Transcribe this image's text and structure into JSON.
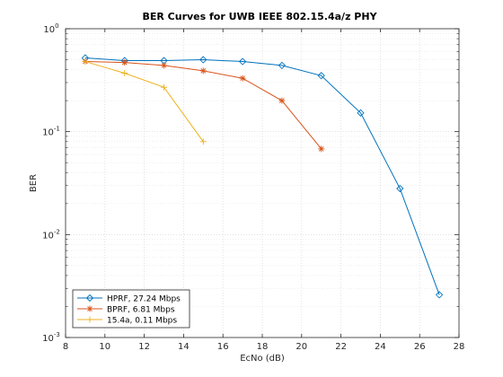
{
  "chart_data": {
    "type": "line",
    "title": "BER Curves for UWB IEEE 802.15.4a/z PHY",
    "xlabel": "EcNo (dB)",
    "ylabel": "BER",
    "xlim": [
      8,
      28
    ],
    "ylim": [
      0.001,
      1
    ],
    "yscale": "log",
    "xticks": [
      "8",
      "10",
      "12",
      "14",
      "16",
      "18",
      "20",
      "22",
      "24",
      "26",
      "28"
    ],
    "yticks": [
      {
        "base": "10",
        "exp": "0"
      },
      {
        "base": "10",
        "exp": "-1"
      },
      {
        "base": "10",
        "exp": "-2"
      },
      {
        "base": "10",
        "exp": "-3"
      }
    ],
    "grid": "on (major and minor, dotted)",
    "legend_location": "bottom-left",
    "series": [
      {
        "name": "HPRF, 27.24 Mbps",
        "color": "#0072BD",
        "marker": "diamond",
        "x": [
          9,
          11,
          13,
          15,
          17,
          19,
          21,
          23,
          25,
          27
        ],
        "y": [
          0.52,
          0.49,
          0.49,
          0.5,
          0.48,
          0.44,
          0.35,
          0.152,
          0.028,
          0.0026
        ]
      },
      {
        "name": "BPRF, 6.81 Mbps",
        "color": "#D95319",
        "marker": "asterisk",
        "x": [
          9,
          11,
          13,
          15,
          17,
          19,
          21
        ],
        "y": [
          0.48,
          0.47,
          0.44,
          0.39,
          0.33,
          0.2,
          0.068
        ]
      },
      {
        "name": "15.4a, 0.11 Mbps",
        "color": "#EDB120",
        "marker": "plus",
        "x": [
          9,
          11,
          13,
          15
        ],
        "y": [
          0.48,
          0.37,
          0.27,
          0.08
        ]
      }
    ]
  }
}
